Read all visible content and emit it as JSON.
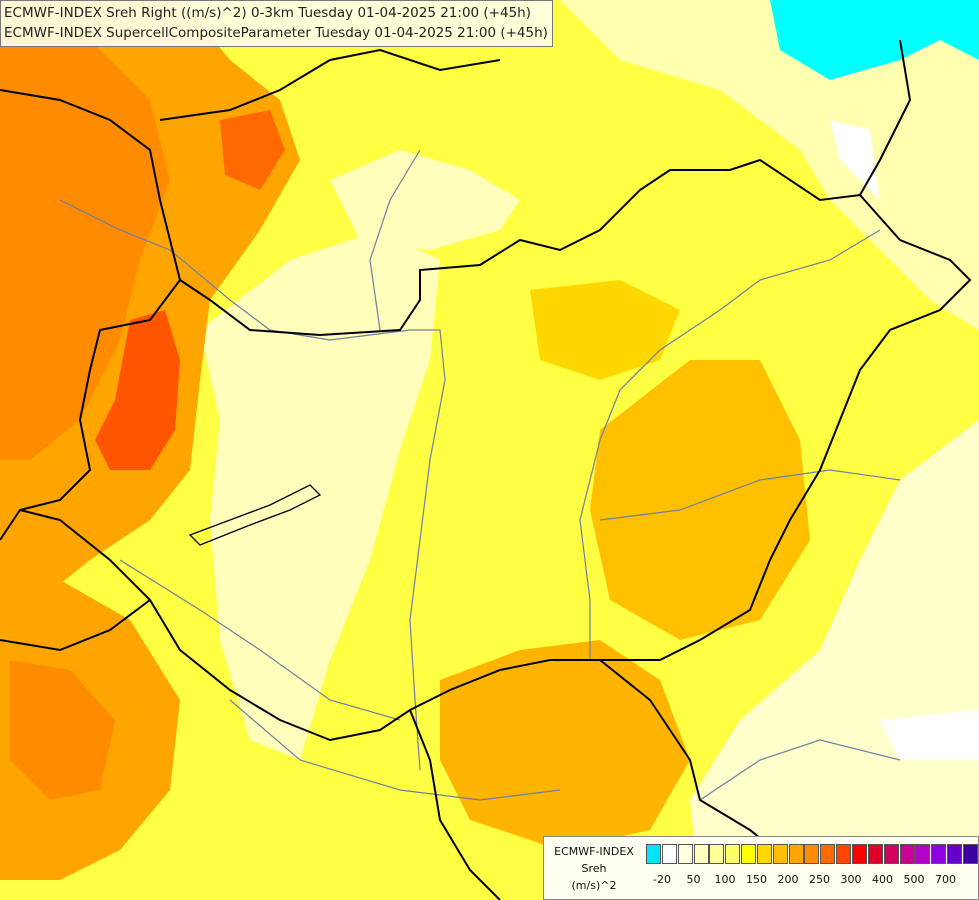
{
  "titles": {
    "line1": "ECMWF-INDEX Sreh Right ((m/s)^2) 0-3km Tuesday 01-04-2025 21:00 (+45h)",
    "line2": "ECMWF-INDEX SupercellCompositeParameter Tuesday 01-04-2025 21:00 (+45h)"
  },
  "legend": {
    "model": "ECMWF-INDEX",
    "parameter": "Sreh",
    "unit": "(m/s)^2",
    "colors": [
      "#00e5ff",
      "#ffffff",
      "#ffffe0",
      "#ffffc0",
      "#ffff99",
      "#ffff66",
      "#ffff00",
      "#ffd700",
      "#ffbf00",
      "#ffa500",
      "#ff8c00",
      "#ff6a00",
      "#ff4500",
      "#ff0000",
      "#e0002a",
      "#d40060",
      "#cc0099",
      "#b400c8",
      "#8c00e6",
      "#6600cc",
      "#3c00a0",
      "#000080"
    ],
    "tick_labels": [
      "-20",
      "50",
      "100",
      "150",
      "200",
      "250",
      "300",
      "400",
      "500",
      "700"
    ]
  },
  "colors": {
    "border": "#000000",
    "river": "#6e7fa0",
    "water": "#00ffff",
    "low": "#ffffcc",
    "mid": "#ffff00",
    "high": "#ffa500",
    "very_high": "#ff4500"
  }
}
